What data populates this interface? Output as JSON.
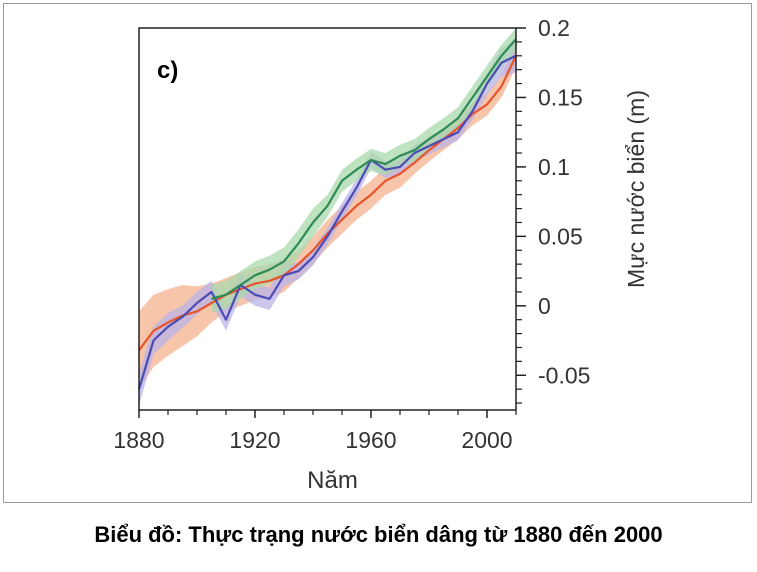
{
  "caption": "Biểu đồ: Thực trạng nước biển dâng từ 1880 đến 2000",
  "chart_data": {
    "type": "line",
    "panel_label": "c)",
    "xlabel": "Năm",
    "ylabel": "Mực nước biển (m)",
    "xlim": [
      1880,
      2010
    ],
    "ylim": [
      -0.075,
      0.2
    ],
    "x_ticks": [
      1880,
      1920,
      1960,
      2000
    ],
    "x_tick_labels": [
      "1880",
      "1920",
      "1960",
      "2000"
    ],
    "y_ticks": [
      -0.05,
      0,
      0.05,
      0.1,
      0.15,
      0.2
    ],
    "y_tick_labels": [
      "-0.05",
      "0",
      "0.05",
      "0.1",
      "0.15",
      "0.2"
    ],
    "series": [
      {
        "name": "orange",
        "color": "#e8542c",
        "band_color": "#f4b28e",
        "x": [
          1880,
          1885,
          1890,
          1895,
          1900,
          1905,
          1910,
          1915,
          1920,
          1925,
          1930,
          1935,
          1940,
          1945,
          1950,
          1955,
          1960,
          1965,
          1970,
          1975,
          1980,
          1985,
          1990,
          1995,
          2000,
          2005,
          2010
        ],
        "y": [
          -0.032,
          -0.018,
          -0.012,
          -0.007,
          -0.004,
          0.002,
          0.008,
          0.012,
          0.016,
          0.018,
          0.022,
          0.03,
          0.04,
          0.052,
          0.062,
          0.072,
          0.08,
          0.09,
          0.095,
          0.103,
          0.112,
          0.12,
          0.128,
          0.138,
          0.145,
          0.158,
          0.18
        ],
        "band": [
          0.028,
          0.026,
          0.024,
          0.022,
          0.018,
          0.014,
          0.012,
          0.012,
          0.012,
          0.012,
          0.012,
          0.01,
          0.01,
          0.01,
          0.01,
          0.01,
          0.01,
          0.01,
          0.01,
          0.008,
          0.008,
          0.008,
          0.008,
          0.008,
          0.008,
          0.008,
          0.008
        ]
      },
      {
        "name": "blue",
        "color": "#4b4bb5",
        "band_color": "#b9b3e6",
        "x": [
          1880,
          1885,
          1890,
          1895,
          1900,
          1905,
          1910,
          1915,
          1920,
          1925,
          1930,
          1935,
          1940,
          1945,
          1950,
          1955,
          1960,
          1965,
          1970,
          1975,
          1980,
          1985,
          1990,
          1995,
          2000,
          2005,
          2010
        ],
        "y": [
          -0.06,
          -0.025,
          -0.015,
          -0.008,
          0.002,
          0.01,
          -0.01,
          0.015,
          0.008,
          0.005,
          0.022,
          0.025,
          0.035,
          0.05,
          0.068,
          0.085,
          0.105,
          0.098,
          0.1,
          0.11,
          0.115,
          0.12,
          0.125,
          0.14,
          0.16,
          0.175,
          0.18
        ],
        "band": [
          0.012,
          0.01,
          0.01,
          0.008,
          0.008,
          0.008,
          0.008,
          0.008,
          0.008,
          0.008,
          0.008,
          0.006,
          0.006,
          0.006,
          0.006,
          0.006,
          0.006,
          0.006,
          0.006,
          0.006,
          0.006,
          0.006,
          0.006,
          0.006,
          0.008,
          0.01,
          0.012
        ]
      },
      {
        "name": "green",
        "color": "#2e8b57",
        "band_color": "#a9d9ac",
        "x": [
          1905,
          1910,
          1915,
          1920,
          1925,
          1930,
          1935,
          1940,
          1945,
          1950,
          1955,
          1960,
          1965,
          1970,
          1975,
          1980,
          1985,
          1990,
          1995,
          2000,
          2005,
          2010
        ],
        "y": [
          0.005,
          0.008,
          0.015,
          0.022,
          0.026,
          0.032,
          0.045,
          0.06,
          0.072,
          0.09,
          0.098,
          0.105,
          0.102,
          0.108,
          0.112,
          0.12,
          0.127,
          0.135,
          0.15,
          0.165,
          0.18,
          0.192
        ],
        "band": [
          0.01,
          0.01,
          0.01,
          0.01,
          0.01,
          0.01,
          0.01,
          0.01,
          0.008,
          0.008,
          0.008,
          0.008,
          0.008,
          0.008,
          0.008,
          0.008,
          0.008,
          0.008,
          0.008,
          0.008,
          0.008,
          0.008
        ]
      }
    ]
  }
}
